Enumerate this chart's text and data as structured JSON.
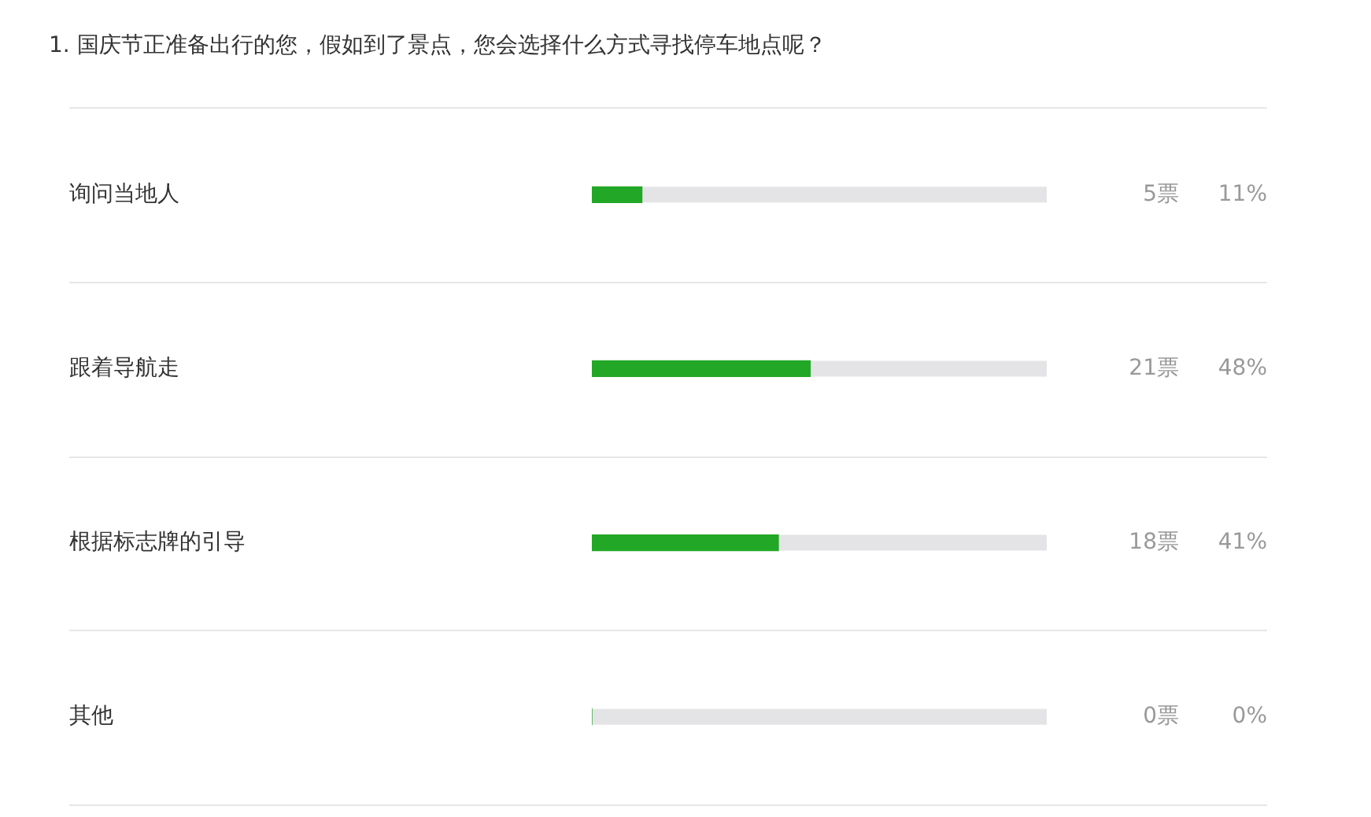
{
  "chart_data": {
    "type": "bar",
    "orientation": "horizontal",
    "title": "1. 国庆节正准备出行的您，假如到了景点，您会选择什么方式寻找停车地点呢？",
    "categories": [
      "询问当地人",
      "跟着导航走",
      "根据标志牌的引导",
      "其他"
    ],
    "values": [
      11,
      48,
      41,
      0
    ],
    "value_labels": [
      "11%",
      "48%",
      "41%",
      "0%"
    ],
    "color": "#22a826",
    "xlim": [
      0,
      100
    ],
    "tick_labels": "y",
    "grid": "y",
    "legend": false,
    "annotations": [
      "5票",
      "21票",
      "18票",
      "0票"
    ]
  }
}
